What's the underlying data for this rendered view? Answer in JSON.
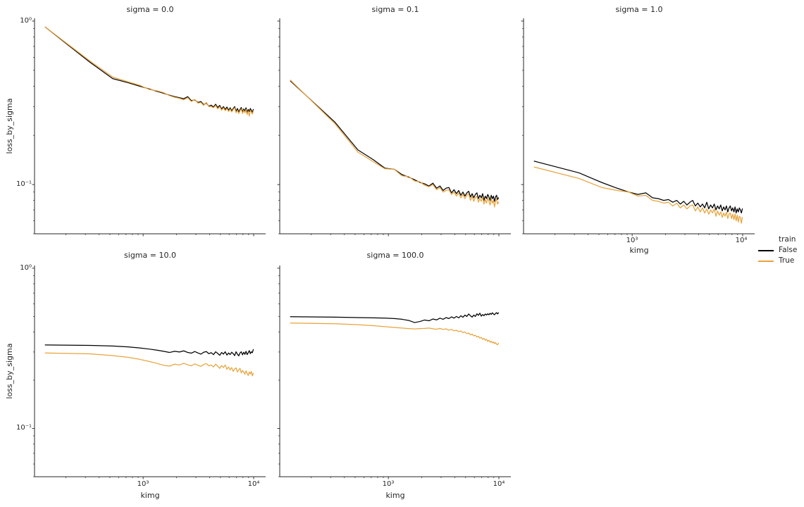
{
  "chart_data": {
    "type": "line",
    "facet_variable": "sigma",
    "xlabel": "kimg",
    "ylabel": "loss_by_sigma",
    "xscale": "log",
    "yscale": "log",
    "xlim": [
      104,
      12840
    ],
    "ylim": [
      0.05,
      1.04
    ],
    "x_major_ticks": [
      {
        "value": 1000,
        "label": "10³"
      },
      {
        "value": 10000,
        "label": "10⁴"
      }
    ],
    "y_major_ticks": [
      {
        "value": 1,
        "label": "10⁰"
      },
      {
        "value": 0.1,
        "label": "10⁻¹"
      }
    ],
    "legend": {
      "title": "train",
      "entries": [
        {
          "label": "False",
          "color": "#000000"
        },
        {
          "label": "True",
          "color": "#E8A33B"
        }
      ]
    },
    "colors": {
      "false_line": "#000000",
      "true_line": "#E8A33B",
      "axis": "#262626"
    },
    "x": [
      130,
      330,
      530,
      730,
      930,
      1130,
      1330,
      1530,
      1730,
      1930,
      2130,
      2330,
      2530,
      2730,
      2930,
      3130,
      3330,
      3530,
      3730,
      3930,
      4130,
      4330,
      4530,
      4730,
      4930,
      5130,
      5330,
      5530,
      5730,
      5930,
      6130,
      6330,
      6530,
      6730,
      6930,
      7130,
      7330,
      7530,
      7730,
      7930,
      8130,
      8330,
      8530,
      8730,
      8930,
      9130,
      9330,
      9530,
      9730,
      9930
    ],
    "facets": [
      {
        "title": "sigma = 0.0",
        "series": [
          {
            "name": "False",
            "color": "#000000",
            "y": [
              0.92,
              0.56,
              0.445,
              0.42,
              0.4,
              0.385,
              0.372,
              0.362,
              0.352,
              0.345,
              0.34,
              0.335,
              0.345,
              0.326,
              0.33,
              0.318,
              0.322,
              0.308,
              0.315,
              0.302,
              0.306,
              0.298,
              0.31,
              0.296,
              0.305,
              0.29,
              0.3,
              0.288,
              0.298,
              0.285,
              0.295,
              0.283,
              0.292,
              0.3,
              0.28,
              0.292,
              0.278,
              0.288,
              0.296,
              0.278,
              0.29,
              0.282,
              0.295,
              0.275,
              0.288,
              0.28,
              0.292,
              0.285,
              0.276,
              0.288
            ]
          },
          {
            "name": "True",
            "color": "#E8A33B",
            "y": [
              0.92,
              0.57,
              0.455,
              0.425,
              0.405,
              0.382,
              0.375,
              0.365,
              0.35,
              0.342,
              0.337,
              0.33,
              0.34,
              0.322,
              0.332,
              0.315,
              0.318,
              0.305,
              0.318,
              0.3,
              0.3,
              0.295,
              0.305,
              0.29,
              0.3,
              0.285,
              0.295,
              0.283,
              0.292,
              0.28,
              0.29,
              0.278,
              0.288,
              0.295,
              0.275,
              0.285,
              0.272,
              0.283,
              0.29,
              0.272,
              0.285,
              0.275,
              0.288,
              0.268,
              0.282,
              0.262,
              0.285,
              0.278,
              0.27,
              0.283
            ]
          }
        ]
      },
      {
        "title": "sigma = 0.1",
        "series": [
          {
            "name": "False",
            "color": "#000000",
            "y": [
              0.43,
              0.24,
              0.163,
              0.142,
              0.126,
              0.124,
              0.115,
              0.111,
              0.107,
              0.103,
              0.101,
              0.098,
              0.102,
              0.095,
              0.098,
              0.092,
              0.095,
              0.096,
              0.089,
              0.093,
              0.088,
              0.092,
              0.086,
              0.09,
              0.085,
              0.089,
              0.091,
              0.084,
              0.088,
              0.083,
              0.087,
              0.089,
              0.082,
              0.086,
              0.083,
              0.088,
              0.08,
              0.085,
              0.082,
              0.087,
              0.084,
              0.08,
              0.086,
              0.082,
              0.085,
              0.079,
              0.084,
              0.086,
              0.081,
              0.083
            ]
          },
          {
            "name": "True",
            "color": "#E8A33B",
            "y": [
              0.435,
              0.235,
              0.158,
              0.138,
              0.125,
              0.124,
              0.113,
              0.112,
              0.105,
              0.104,
              0.099,
              0.097,
              0.1,
              0.093,
              0.096,
              0.09,
              0.092,
              0.093,
              0.087,
              0.09,
              0.085,
              0.089,
              0.083,
              0.087,
              0.082,
              0.086,
              0.088,
              0.08,
              0.085,
              0.079,
              0.083,
              0.085,
              0.078,
              0.082,
              0.079,
              0.084,
              0.076,
              0.081,
              0.077,
              0.083,
              0.079,
              0.075,
              0.082,
              0.077,
              0.08,
              0.073,
              0.079,
              0.082,
              0.076,
              0.078
            ]
          }
        ]
      },
      {
        "title": "sigma = 1.0",
        "series": [
          {
            "name": "False",
            "color": "#000000",
            "y": [
              0.139,
              0.118,
              0.103,
              0.095,
              0.09,
              0.087,
              0.089,
              0.083,
              0.082,
              0.08,
              0.081,
              0.078,
              0.08,
              0.076,
              0.079,
              0.075,
              0.078,
              0.08,
              0.074,
              0.077,
              0.073,
              0.076,
              0.072,
              0.078,
              0.071,
              0.075,
              0.072,
              0.076,
              0.07,
              0.074,
              0.071,
              0.075,
              0.069,
              0.073,
              0.07,
              0.074,
              0.068,
              0.072,
              0.074,
              0.069,
              0.072,
              0.068,
              0.073,
              0.067,
              0.071,
              0.068,
              0.072,
              0.07,
              0.067,
              0.071
            ]
          },
          {
            "name": "True",
            "color": "#E8A33B",
            "y": [
              0.128,
              0.109,
              0.096,
              0.092,
              0.09,
              0.085,
              0.086,
              0.08,
              0.079,
              0.077,
              0.078,
              0.074,
              0.077,
              0.072,
              0.075,
              0.071,
              0.074,
              0.075,
              0.069,
              0.073,
              0.068,
              0.072,
              0.067,
              0.071,
              0.066,
              0.07,
              0.067,
              0.071,
              0.064,
              0.069,
              0.065,
              0.068,
              0.063,
              0.067,
              0.064,
              0.068,
              0.062,
              0.066,
              0.067,
              0.062,
              0.066,
              0.061,
              0.066,
              0.06,
              0.065,
              0.059,
              0.064,
              0.063,
              0.058,
              0.063
            ]
          }
        ]
      },
      {
        "title": "sigma = 10.0",
        "series": [
          {
            "name": "False",
            "color": "#000000",
            "y": [
              0.332,
              0.33,
              0.327,
              0.323,
              0.318,
              0.313,
              0.308,
              0.303,
              0.298,
              0.303,
              0.3,
              0.305,
              0.298,
              0.295,
              0.302,
              0.296,
              0.291,
              0.299,
              0.302,
              0.293,
              0.297,
              0.289,
              0.301,
              0.294,
              0.286,
              0.298,
              0.291,
              0.301,
              0.287,
              0.296,
              0.289,
              0.299,
              0.293,
              0.285,
              0.301,
              0.291,
              0.284,
              0.296,
              0.301,
              0.288,
              0.299,
              0.29,
              0.303,
              0.289,
              0.297,
              0.306,
              0.293,
              0.301,
              0.297,
              0.311
            ]
          },
          {
            "name": "True",
            "color": "#E8A33B",
            "y": [
              0.296,
              0.292,
              0.285,
              0.278,
              0.27,
              0.262,
              0.255,
              0.248,
              0.245,
              0.252,
              0.249,
              0.255,
              0.25,
              0.246,
              0.253,
              0.248,
              0.244,
              0.251,
              0.254,
              0.246,
              0.249,
              0.242,
              0.252,
              0.245,
              0.237,
              0.247,
              0.24,
              0.249,
              0.234,
              0.242,
              0.232,
              0.24,
              0.227,
              0.235,
              0.239,
              0.225,
              0.232,
              0.237,
              0.222,
              0.23,
              0.225,
              0.218,
              0.229,
              0.221,
              0.214,
              0.225,
              0.219,
              0.227,
              0.213,
              0.221
            ]
          }
        ]
      },
      {
        "title": "sigma = 100.0",
        "series": [
          {
            "name": "False",
            "color": "#000000",
            "y": [
              0.498,
              0.495,
              0.492,
              0.49,
              0.488,
              0.485,
              0.48,
              0.472,
              0.458,
              0.465,
              0.475,
              0.47,
              0.482,
              0.476,
              0.488,
              0.48,
              0.492,
              0.485,
              0.497,
              0.488,
              0.5,
              0.49,
              0.505,
              0.494,
              0.51,
              0.5,
              0.518,
              0.505,
              0.495,
              0.51,
              0.5,
              0.52,
              0.508,
              0.524,
              0.502,
              0.514,
              0.505,
              0.518,
              0.51,
              0.52,
              0.512,
              0.523,
              0.515,
              0.527,
              0.518,
              0.512,
              0.522,
              0.528,
              0.518,
              0.527
            ]
          },
          {
            "name": "True",
            "color": "#E8A33B",
            "y": [
              0.455,
              0.45,
              0.444,
              0.438,
              0.432,
              0.427,
              0.423,
              0.42,
              0.418,
              0.42,
              0.421,
              0.423,
              0.419,
              0.416,
              0.421,
              0.415,
              0.418,
              0.411,
              0.415,
              0.407,
              0.41,
              0.402,
              0.406,
              0.396,
              0.4,
              0.39,
              0.394,
              0.384,
              0.388,
              0.378,
              0.382,
              0.372,
              0.376,
              0.366,
              0.37,
              0.36,
              0.365,
              0.355,
              0.36,
              0.35,
              0.355,
              0.345,
              0.35,
              0.342,
              0.347,
              0.338,
              0.344,
              0.336,
              0.333,
              0.34
            ]
          }
        ]
      }
    ]
  }
}
